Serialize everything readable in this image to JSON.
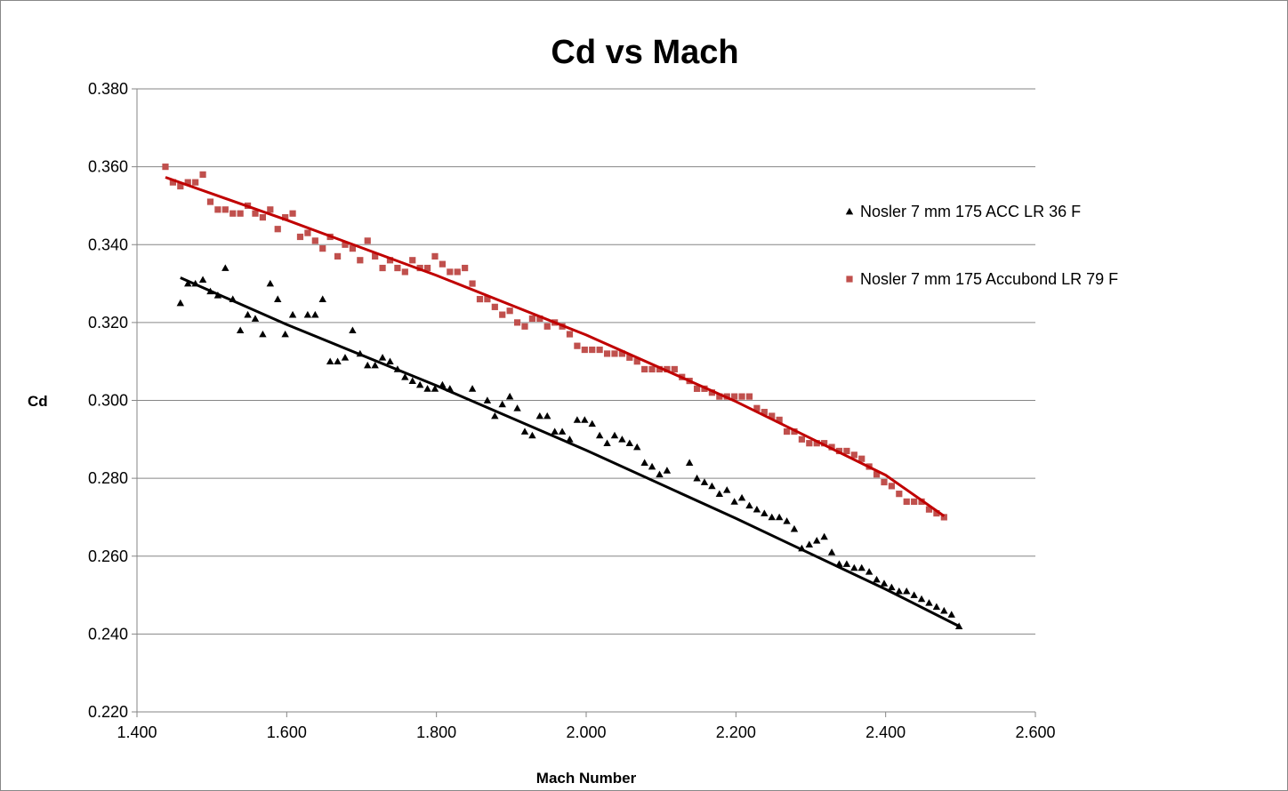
{
  "chart_data": {
    "type": "scatter",
    "title": "Cd vs Mach",
    "xlabel": "Mach Number",
    "ylabel": "Cd",
    "xlim": [
      1.4,
      2.6
    ],
    "ylim": [
      0.22,
      0.38
    ],
    "x_ticks": [
      "1.400",
      "1.600",
      "1.800",
      "2.000",
      "2.200",
      "2.400",
      "2.600"
    ],
    "y_ticks": [
      "0.220",
      "0.240",
      "0.260",
      "0.280",
      "0.300",
      "0.320",
      "0.340",
      "0.360",
      "0.380"
    ],
    "grid": "horizontal",
    "legend_position": "right",
    "series": [
      {
        "name": "Nosler 7 mm 175 ACC LR 36 F",
        "marker": "triangle",
        "color": "#000000",
        "trend_color": "#000000",
        "trendline": [
          [
            1.458,
            0.3315
          ],
          [
            1.6,
            0.3195
          ],
          [
            1.8,
            0.3038
          ],
          [
            2.0,
            0.2872
          ],
          [
            2.2,
            0.2697
          ],
          [
            2.4,
            0.2515
          ],
          [
            2.498,
            0.242
          ]
        ],
        "points": [
          [
            1.458,
            0.325
          ],
          [
            1.468,
            0.33
          ],
          [
            1.478,
            0.33
          ],
          [
            1.488,
            0.331
          ],
          [
            1.498,
            0.328
          ],
          [
            1.508,
            0.327
          ],
          [
            1.518,
            0.334
          ],
          [
            1.528,
            0.326
          ],
          [
            1.538,
            0.318
          ],
          [
            1.548,
            0.322
          ],
          [
            1.558,
            0.321
          ],
          [
            1.568,
            0.317
          ],
          [
            1.578,
            0.33
          ],
          [
            1.588,
            0.326
          ],
          [
            1.598,
            0.317
          ],
          [
            1.608,
            0.322
          ],
          [
            1.628,
            0.322
          ],
          [
            1.638,
            0.322
          ],
          [
            1.648,
            0.326
          ],
          [
            1.658,
            0.31
          ],
          [
            1.668,
            0.31
          ],
          [
            1.678,
            0.311
          ],
          [
            1.688,
            0.318
          ],
          [
            1.698,
            0.312
          ],
          [
            1.708,
            0.309
          ],
          [
            1.718,
            0.309
          ],
          [
            1.728,
            0.311
          ],
          [
            1.738,
            0.31
          ],
          [
            1.748,
            0.308
          ],
          [
            1.758,
            0.306
          ],
          [
            1.768,
            0.305
          ],
          [
            1.778,
            0.304
          ],
          [
            1.788,
            0.303
          ],
          [
            1.798,
            0.303
          ],
          [
            1.808,
            0.304
          ],
          [
            1.818,
            0.303
          ],
          [
            1.848,
            0.303
          ],
          [
            1.868,
            0.3
          ],
          [
            1.878,
            0.296
          ],
          [
            1.888,
            0.299
          ],
          [
            1.898,
            0.301
          ],
          [
            1.908,
            0.298
          ],
          [
            1.918,
            0.292
          ],
          [
            1.928,
            0.291
          ],
          [
            1.938,
            0.296
          ],
          [
            1.948,
            0.296
          ],
          [
            1.958,
            0.292
          ],
          [
            1.968,
            0.292
          ],
          [
            1.978,
            0.29
          ],
          [
            1.988,
            0.295
          ],
          [
            1.998,
            0.295
          ],
          [
            2.008,
            0.294
          ],
          [
            2.018,
            0.291
          ],
          [
            2.028,
            0.289
          ],
          [
            2.038,
            0.291
          ],
          [
            2.048,
            0.29
          ],
          [
            2.058,
            0.289
          ],
          [
            2.068,
            0.288
          ],
          [
            2.078,
            0.284
          ],
          [
            2.088,
            0.283
          ],
          [
            2.098,
            0.281
          ],
          [
            2.108,
            0.282
          ],
          [
            2.138,
            0.284
          ],
          [
            2.148,
            0.28
          ],
          [
            2.158,
            0.279
          ],
          [
            2.168,
            0.278
          ],
          [
            2.178,
            0.276
          ],
          [
            2.188,
            0.277
          ],
          [
            2.198,
            0.274
          ],
          [
            2.208,
            0.275
          ],
          [
            2.218,
            0.273
          ],
          [
            2.228,
            0.272
          ],
          [
            2.238,
            0.271
          ],
          [
            2.248,
            0.27
          ],
          [
            2.258,
            0.27
          ],
          [
            2.268,
            0.269
          ],
          [
            2.278,
            0.267
          ],
          [
            2.288,
            0.262
          ],
          [
            2.298,
            0.263
          ],
          [
            2.308,
            0.264
          ],
          [
            2.318,
            0.265
          ],
          [
            2.328,
            0.261
          ],
          [
            2.338,
            0.258
          ],
          [
            2.348,
            0.258
          ],
          [
            2.358,
            0.257
          ],
          [
            2.368,
            0.257
          ],
          [
            2.378,
            0.256
          ],
          [
            2.388,
            0.254
          ],
          [
            2.398,
            0.253
          ],
          [
            2.408,
            0.252
          ],
          [
            2.418,
            0.251
          ],
          [
            2.428,
            0.251
          ],
          [
            2.438,
            0.25
          ],
          [
            2.448,
            0.249
          ],
          [
            2.458,
            0.248
          ],
          [
            2.468,
            0.247
          ],
          [
            2.478,
            0.246
          ],
          [
            2.488,
            0.245
          ],
          [
            2.498,
            0.242
          ]
        ]
      },
      {
        "name": "Nosler 7 mm 175 Accubond LR 79 F",
        "marker": "square",
        "color": "#c0504d",
        "trend_color": "#c00000",
        "trendline": [
          [
            1.438,
            0.3573
          ],
          [
            1.6,
            0.3463
          ],
          [
            1.8,
            0.3321
          ],
          [
            2.0,
            0.3168
          ],
          [
            2.2,
            0.2997
          ],
          [
            2.4,
            0.2808
          ],
          [
            2.478,
            0.2703
          ]
        ],
        "points": [
          [
            1.438,
            0.36
          ],
          [
            1.448,
            0.356
          ],
          [
            1.458,
            0.355
          ],
          [
            1.468,
            0.356
          ],
          [
            1.478,
            0.356
          ],
          [
            1.488,
            0.358
          ],
          [
            1.498,
            0.351
          ],
          [
            1.508,
            0.349
          ],
          [
            1.518,
            0.349
          ],
          [
            1.528,
            0.348
          ],
          [
            1.538,
            0.348
          ],
          [
            1.548,
            0.35
          ],
          [
            1.558,
            0.348
          ],
          [
            1.568,
            0.347
          ],
          [
            1.578,
            0.349
          ],
          [
            1.588,
            0.344
          ],
          [
            1.598,
            0.347
          ],
          [
            1.608,
            0.348
          ],
          [
            1.618,
            0.342
          ],
          [
            1.628,
            0.343
          ],
          [
            1.638,
            0.341
          ],
          [
            1.648,
            0.339
          ],
          [
            1.658,
            0.342
          ],
          [
            1.668,
            0.337
          ],
          [
            1.678,
            0.34
          ],
          [
            1.688,
            0.339
          ],
          [
            1.698,
            0.336
          ],
          [
            1.708,
            0.341
          ],
          [
            1.718,
            0.337
          ],
          [
            1.728,
            0.334
          ],
          [
            1.738,
            0.336
          ],
          [
            1.748,
            0.334
          ],
          [
            1.758,
            0.333
          ],
          [
            1.768,
            0.336
          ],
          [
            1.778,
            0.334
          ],
          [
            1.788,
            0.334
          ],
          [
            1.798,
            0.337
          ],
          [
            1.808,
            0.335
          ],
          [
            1.818,
            0.333
          ],
          [
            1.828,
            0.333
          ],
          [
            1.838,
            0.334
          ],
          [
            1.848,
            0.33
          ],
          [
            1.858,
            0.326
          ],
          [
            1.868,
            0.326
          ],
          [
            1.878,
            0.324
          ],
          [
            1.888,
            0.322
          ],
          [
            1.898,
            0.323
          ],
          [
            1.908,
            0.32
          ],
          [
            1.918,
            0.319
          ],
          [
            1.928,
            0.321
          ],
          [
            1.938,
            0.321
          ],
          [
            1.948,
            0.319
          ],
          [
            1.958,
            0.32
          ],
          [
            1.968,
            0.319
          ],
          [
            1.978,
            0.317
          ],
          [
            1.988,
            0.314
          ],
          [
            1.998,
            0.313
          ],
          [
            2.008,
            0.313
          ],
          [
            2.018,
            0.313
          ],
          [
            2.028,
            0.312
          ],
          [
            2.038,
            0.312
          ],
          [
            2.048,
            0.312
          ],
          [
            2.058,
            0.311
          ],
          [
            2.068,
            0.31
          ],
          [
            2.078,
            0.308
          ],
          [
            2.088,
            0.308
          ],
          [
            2.098,
            0.308
          ],
          [
            2.108,
            0.308
          ],
          [
            2.118,
            0.308
          ],
          [
            2.128,
            0.306
          ],
          [
            2.138,
            0.305
          ],
          [
            2.148,
            0.303
          ],
          [
            2.158,
            0.303
          ],
          [
            2.168,
            0.302
          ],
          [
            2.178,
            0.301
          ],
          [
            2.188,
            0.301
          ],
          [
            2.198,
            0.301
          ],
          [
            2.208,
            0.301
          ],
          [
            2.218,
            0.301
          ],
          [
            2.228,
            0.298
          ],
          [
            2.238,
            0.297
          ],
          [
            2.248,
            0.296
          ],
          [
            2.258,
            0.295
          ],
          [
            2.268,
            0.292
          ],
          [
            2.278,
            0.292
          ],
          [
            2.288,
            0.29
          ],
          [
            2.298,
            0.289
          ],
          [
            2.308,
            0.289
          ],
          [
            2.318,
            0.289
          ],
          [
            2.328,
            0.288
          ],
          [
            2.338,
            0.287
          ],
          [
            2.348,
            0.287
          ],
          [
            2.358,
            0.286
          ],
          [
            2.368,
            0.285
          ],
          [
            2.378,
            0.283
          ],
          [
            2.388,
            0.281
          ],
          [
            2.398,
            0.279
          ],
          [
            2.408,
            0.278
          ],
          [
            2.418,
            0.276
          ],
          [
            2.428,
            0.274
          ],
          [
            2.438,
            0.274
          ],
          [
            2.448,
            0.274
          ],
          [
            2.458,
            0.272
          ],
          [
            2.468,
            0.271
          ],
          [
            2.478,
            0.27
          ]
        ]
      }
    ]
  }
}
